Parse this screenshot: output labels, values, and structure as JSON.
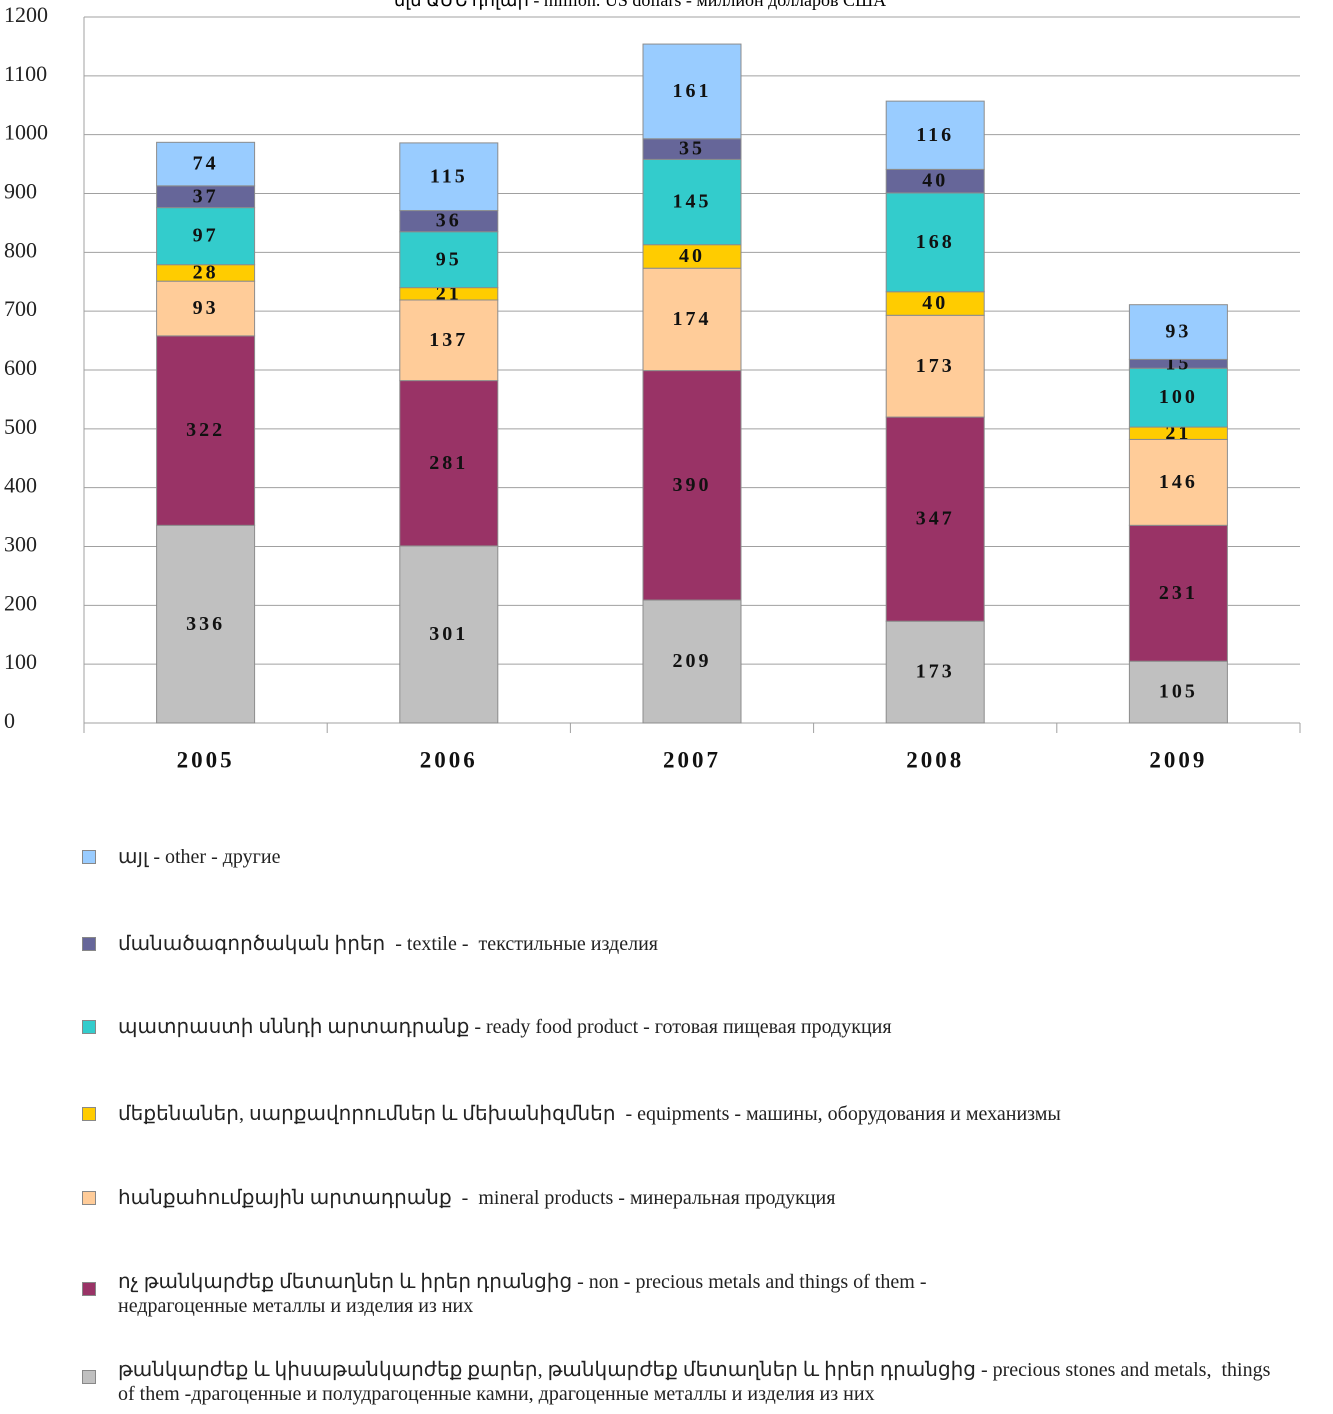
{
  "chart_data": {
    "type": "stacked_bar",
    "title": "մլն ԱՄՆ դոլար - million. US dollars - миллион долларов США",
    "categories": [
      "2005",
      "2006",
      "2007",
      "2008",
      "2009"
    ],
    "ylim": [
      0,
      1200
    ],
    "yticks": [
      0,
      100,
      200,
      300,
      400,
      500,
      600,
      700,
      800,
      900,
      1000,
      1100,
      1200
    ],
    "grid": true,
    "series": [
      {
        "name": "թանկարժեք և կիսաթանկարժեք քարեր, թանկարժեք մետաղներ և իրեր դրանցից - precious stones and metals,  things\nof them -драгоценные и полудрагоценные камни, драгоценные металлы и изделия из них",
        "color": "#c0c0c0",
        "values": [
          336,
          301,
          209,
          173,
          105
        ]
      },
      {
        "name": "ոչ թանկարժեք մետաղներ և իրեր դրանցից - non - precious metals and things of them -\nнедрагоценные металлы и изделия из них",
        "color": "#993366",
        "values": [
          322,
          281,
          390,
          347,
          231
        ]
      },
      {
        "name": "հանքահումքային արտադրանք  -  mineral products - минеральная продукция",
        "color": "#ffcc99",
        "values": [
          93,
          137,
          174,
          173,
          146
        ]
      },
      {
        "name": "մեքենաներ, սարքավորումներ և մեխանիզմներ  - equipments - машины, оборудования и механизмы",
        "color": "#ffcc00",
        "values": [
          28,
          21,
          40,
          40,
          21
        ]
      },
      {
        "name": "պատրաստի սննդի արտադրանք - ready food product - готовая пищевая продукция",
        "color": "#33cccc",
        "values": [
          97,
          95,
          145,
          168,
          100
        ]
      },
      {
        "name": "մանածագործական իրեր  - textile -  текстильные изделия",
        "color": "#666699",
        "values": [
          37,
          36,
          35,
          40,
          15
        ]
      },
      {
        "name": "այլ - other - другие",
        "color": "#99ccff",
        "values": [
          74,
          115,
          161,
          116,
          93
        ]
      }
    ]
  }
}
